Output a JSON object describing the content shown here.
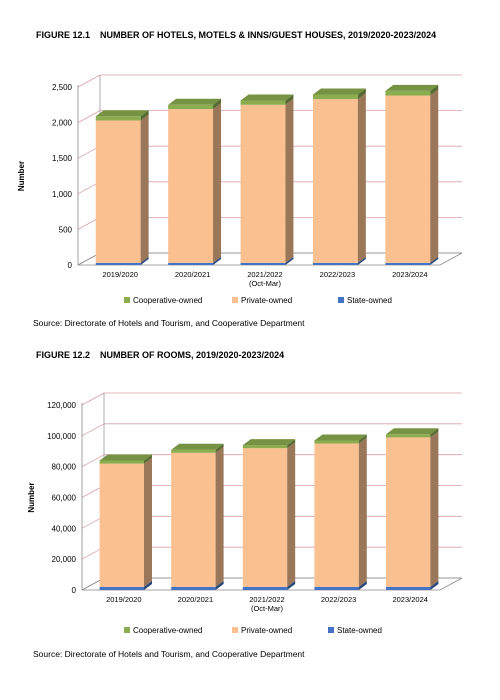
{
  "figures": [
    {
      "number": "FIGURE 12.1",
      "title": "NUMBER OF HOTELS, MOTELS & INNS/GUEST HOUSES, 2019/2020-2023/2024",
      "source": "Source: Directorate of Hotels and Tourism, and Cooperative Department"
    },
    {
      "number": "FIGURE 12.2",
      "title": "NUMBER OF ROOMS, 2019/2020-2023/2024",
      "source": "Source: Directorate of Hotels and Tourism, and Cooperative Department"
    }
  ],
  "colors": {
    "state": "#4472c4",
    "private": "#fac090",
    "cooperative": "#8bad4f",
    "grid": "#d9a0a8"
  },
  "chart_data": [
    {
      "type": "bar",
      "stacked": true,
      "ylabel": "Number",
      "ylim": [
        0,
        2500
      ],
      "yticks": [
        0,
        500,
        1000,
        1500,
        2000,
        2500
      ],
      "ytick_labels": [
        "0",
        "500",
        "1,000",
        "1,500",
        "2,000",
        "2,500"
      ],
      "categories": [
        "2019/2020",
        "2020/2021",
        "2021/2022\n(Oct-Mar)",
        "2022/2023",
        "2023/2024"
      ],
      "series": [
        {
          "name": "State-owned",
          "values": [
            30,
            30,
            30,
            30,
            30
          ]
        },
        {
          "name": "Private-owned",
          "values": [
            2000,
            2160,
            2220,
            2300,
            2350
          ]
        },
        {
          "name": "Cooperative-owned",
          "values": [
            60,
            60,
            60,
            65,
            65
          ]
        }
      ],
      "legend_order": [
        "Cooperative-owned",
        "Private-owned",
        "State-owned"
      ],
      "legend": "bottom",
      "grid": true
    },
    {
      "type": "bar",
      "stacked": true,
      "ylabel": "Number",
      "ylim": [
        0,
        120000
      ],
      "yticks": [
        0,
        20000,
        40000,
        60000,
        80000,
        100000,
        120000
      ],
      "ytick_labels": [
        "0",
        "20,000",
        "40,000",
        "60,000",
        "80,000",
        "100,000",
        "120,000"
      ],
      "categories": [
        "2019/2020",
        "2020/2021",
        "2021/2022\n(Oct-Mar)",
        "2022/2023",
        "2023/2024"
      ],
      "series": [
        {
          "name": "State-owned",
          "values": [
            2000,
            2000,
            2000,
            2000,
            2000
          ]
        },
        {
          "name": "Private-owned",
          "values": [
            80000,
            87000,
            90000,
            93000,
            97000
          ]
        },
        {
          "name": "Cooperative-owned",
          "values": [
            2000,
            2000,
            2000,
            2000,
            2000
          ]
        }
      ],
      "legend_order": [
        "Cooperative-owned",
        "Private-owned",
        "State-owned"
      ],
      "legend": "bottom",
      "grid": true
    }
  ]
}
